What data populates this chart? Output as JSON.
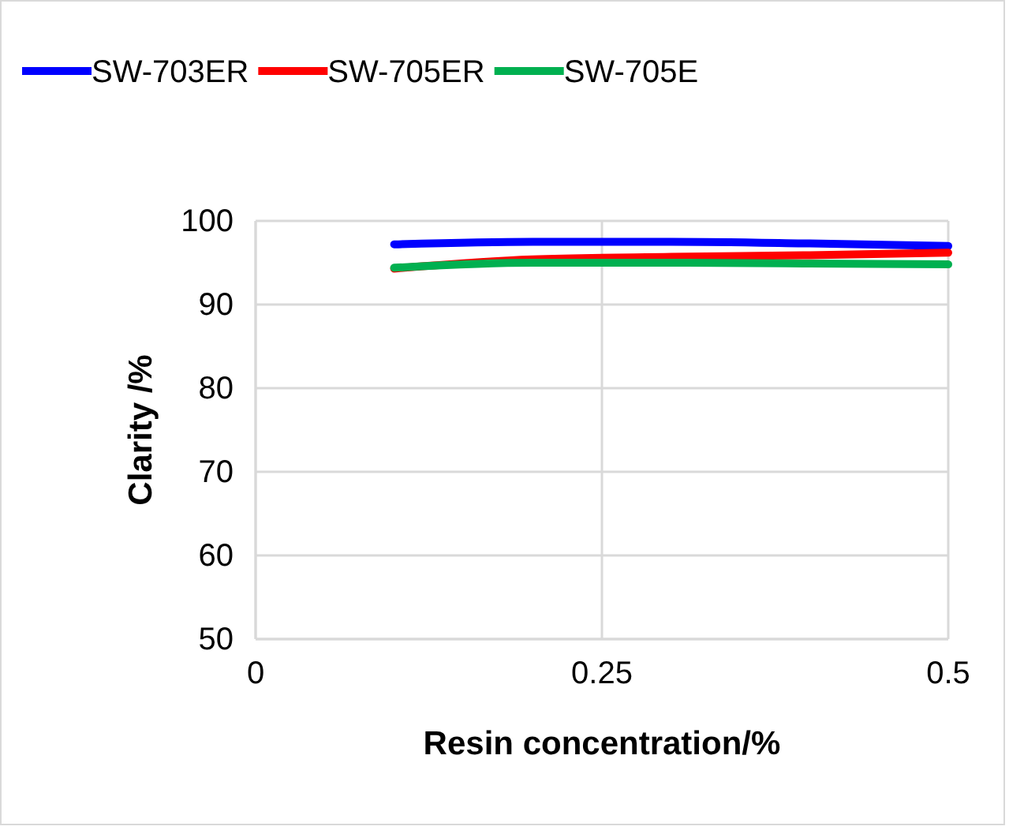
{
  "chart_data": {
    "type": "line",
    "xlabel": "Resin concentration/%",
    "ylabel": "Clarity /%",
    "xlim": [
      0,
      0.5
    ],
    "xticks": [
      0,
      0.25,
      0.5
    ],
    "ylim": [
      50,
      100
    ],
    "yticks": [
      50,
      60,
      70,
      80,
      90,
      100
    ],
    "grid": true,
    "legend": "top",
    "marker": "none",
    "line_style": "solid",
    "x": [
      0.1,
      0.2,
      0.3,
      0.4,
      0.5
    ],
    "series": [
      {
        "name": "SW-703ER",
        "color": "#0000ff",
        "values": [
          97.2,
          97.5,
          97.5,
          97.3,
          97.0
        ]
      },
      {
        "name": "SW-705ER",
        "color": "#ff0000",
        "values": [
          94.3,
          95.4,
          95.7,
          95.9,
          96.2
        ]
      },
      {
        "name": "SW-705E",
        "color": "#00b050",
        "values": [
          94.4,
          95.0,
          95.0,
          94.9,
          94.8
        ]
      }
    ]
  }
}
